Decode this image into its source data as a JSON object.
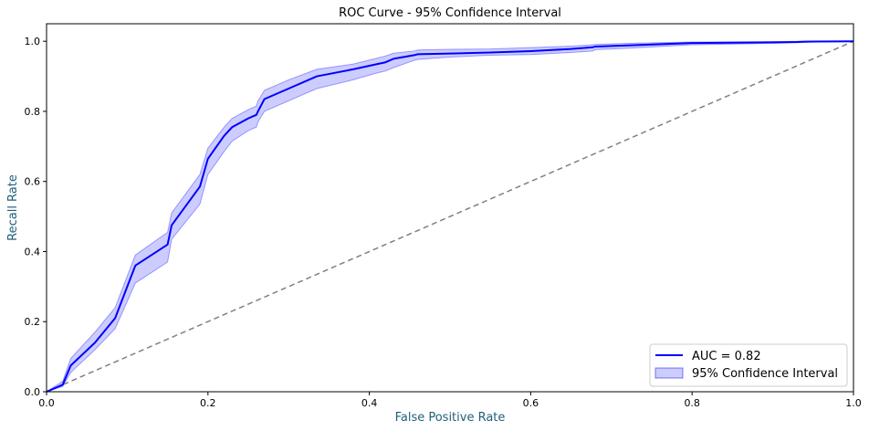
{
  "chart_data": {
    "type": "line",
    "title": "ROC Curve - 95% Confidence Interval",
    "xlabel": "False Positive Rate",
    "ylabel": "Recall Rate",
    "xlim": [
      0,
      1
    ],
    "ylim": [
      0,
      1.05
    ],
    "x_ticks": [
      "0.0",
      "0.2",
      "0.4",
      "0.6",
      "0.8",
      "1.0"
    ],
    "y_ticks": [
      "0.0",
      "0.2",
      "0.4",
      "0.6",
      "0.8",
      "1.0"
    ],
    "grid": false,
    "legend_position": "lower-right",
    "series": [
      {
        "name": "AUC = 0.82",
        "kind": "line",
        "color": "#0000ff",
        "x": [
          0,
          0.02,
          0.03,
          0.06,
          0.085,
          0.11,
          0.15,
          0.155,
          0.19,
          0.2,
          0.22,
          0.23,
          0.25,
          0.26,
          0.262,
          0.27,
          0.3,
          0.335,
          0.38,
          0.41,
          0.42,
          0.43,
          0.455,
          0.46,
          0.5,
          0.55,
          0.6,
          0.65,
          0.677,
          0.68,
          0.72,
          0.8,
          0.9,
          0.93,
          0.94,
          1.0
        ],
        "y": [
          0,
          0.02,
          0.075,
          0.14,
          0.21,
          0.36,
          0.42,
          0.475,
          0.585,
          0.665,
          0.73,
          0.755,
          0.78,
          0.79,
          0.8,
          0.835,
          0.865,
          0.9,
          0.92,
          0.935,
          0.94,
          0.95,
          0.96,
          0.963,
          0.965,
          0.968,
          0.972,
          0.978,
          0.983,
          0.985,
          0.988,
          0.995,
          0.997,
          0.998,
          0.999,
          1.0
        ]
      },
      {
        "name": "95% Confidence Interval",
        "kind": "band",
        "color": "#0000ff",
        "x": [
          0,
          0.02,
          0.03,
          0.06,
          0.085,
          0.11,
          0.15,
          0.155,
          0.19,
          0.2,
          0.22,
          0.23,
          0.25,
          0.26,
          0.262,
          0.27,
          0.3,
          0.335,
          0.38,
          0.41,
          0.42,
          0.43,
          0.455,
          0.46,
          0.5,
          0.55,
          0.6,
          0.65,
          0.677,
          0.68,
          0.72,
          0.8,
          0.9,
          0.93,
          0.94,
          1.0
        ],
        "lower": [
          0,
          0.015,
          0.055,
          0.12,
          0.18,
          0.31,
          0.37,
          0.435,
          0.535,
          0.62,
          0.685,
          0.715,
          0.745,
          0.755,
          0.77,
          0.8,
          0.83,
          0.865,
          0.89,
          0.91,
          0.915,
          0.925,
          0.945,
          0.948,
          0.955,
          0.96,
          0.962,
          0.968,
          0.972,
          0.976,
          0.98,
          0.99,
          0.994,
          0.996,
          0.997,
          1.0
        ],
        "upper": [
          0,
          0.03,
          0.095,
          0.17,
          0.24,
          0.39,
          0.455,
          0.51,
          0.62,
          0.695,
          0.755,
          0.78,
          0.805,
          0.815,
          0.83,
          0.86,
          0.89,
          0.92,
          0.935,
          0.952,
          0.958,
          0.966,
          0.972,
          0.975,
          0.977,
          0.978,
          0.982,
          0.986,
          0.99,
          0.991,
          0.994,
          0.998,
          0.999,
          1.0,
          1.0,
          1.0
        ]
      },
      {
        "name": "",
        "kind": "diagonal",
        "color": "#808080",
        "x": [
          0,
          1
        ],
        "y": [
          0,
          1
        ]
      }
    ]
  }
}
